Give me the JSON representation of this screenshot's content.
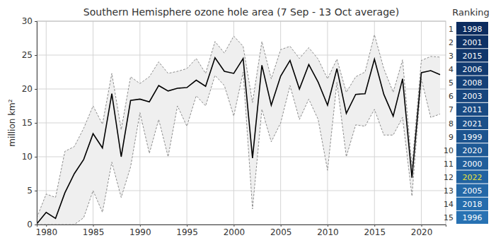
{
  "chart_data": {
    "type": "line",
    "title": "Southern Hemisphere ozone hole area (7 Sep - 13 Oct average)",
    "y_label": "million km²",
    "x": [
      1979,
      1980,
      1981,
      1982,
      1983,
      1984,
      1985,
      1986,
      1987,
      1988,
      1989,
      1990,
      1991,
      1992,
      1993,
      1994,
      1995,
      1996,
      1997,
      1998,
      1999,
      2000,
      2001,
      2002,
      2003,
      2004,
      2005,
      2006,
      2007,
      2008,
      2009,
      2010,
      2011,
      2012,
      2013,
      2014,
      2015,
      2016,
      2017,
      2018,
      2019,
      2020,
      2021,
      2022
    ],
    "series": [
      {
        "type": "line",
        "color": "#000000",
        "line_style": "solid",
        "values": [
          0.1,
          1.8,
          0.9,
          4.7,
          7.5,
          9.6,
          13.4,
          11.3,
          19.3,
          10.0,
          18.3,
          18.5,
          18.1,
          20.5,
          19.7,
          20.1,
          20.2,
          21.3,
          20.4,
          24.6,
          22.6,
          22.3,
          24.5,
          9.8,
          23.5,
          17.6,
          21.9,
          24.2,
          20.0,
          23.6,
          21.0,
          17.6,
          23.0,
          16.4,
          19.2,
          19.3,
          24.4,
          19.2,
          16.0,
          21.5,
          6.9,
          22.4,
          22.7,
          22.1
        ]
      },
      {
        "type": "line",
        "color": "#808080",
        "line_style": "dashed",
        "values": [
          1.0,
          4.5,
          4.0,
          10.8,
          11.5,
          14.2,
          17.5,
          14.8,
          22.3,
          14.0,
          21.8,
          20.8,
          21.8,
          24.0,
          22.3,
          22.6,
          23.0,
          24.5,
          22.3,
          27.0,
          25.3,
          27.8,
          26.3,
          18.0,
          27.0,
          21.5,
          25.8,
          26.3,
          24.5,
          26.1,
          24.4,
          21.5,
          24.4,
          19.5,
          21.8,
          22.5,
          28.0,
          23.0,
          19.5,
          24.3,
          8.5,
          24.2,
          24.8,
          24.7
        ]
      },
      {
        "type": "line",
        "color": "#808080",
        "line_style": "dashed",
        "values": [
          0.0,
          0.0,
          0.0,
          0.0,
          0.0,
          1.0,
          5.0,
          1.8,
          9.2,
          4.0,
          8.5,
          16.5,
          10.5,
          15.5,
          10.0,
          17.5,
          14.5,
          19.0,
          17.5,
          22.0,
          20.5,
          16.0,
          22.5,
          2.3,
          17.0,
          12.2,
          15.0,
          20.5,
          15.5,
          18.5,
          15.5,
          8.0,
          21.0,
          10.0,
          14.7,
          14.5,
          17.0,
          13.2,
          13.2,
          15.8,
          4.2,
          21.5,
          15.8,
          16.3
        ]
      }
    ],
    "xlim": [
      1979,
      2022.6
    ],
    "xticks": [
      1980,
      1985,
      1990,
      1995,
      2000,
      2005,
      2010,
      2015,
      2020
    ],
    "ylim": [
      0,
      30
    ],
    "yticks": [
      0,
      5,
      10,
      15,
      20,
      25,
      30
    ],
    "grid": true
  },
  "ranking": {
    "title": "Ranking",
    "ranks": [
      1,
      2,
      3,
      4,
      5,
      6,
      7,
      8,
      9,
      10,
      11,
      12,
      13,
      14,
      15
    ],
    "years": [
      "1998",
      "2001",
      "2015",
      "2006",
      "2008",
      "2003",
      "2011",
      "2021",
      "1999",
      "2020",
      "2000",
      "2022",
      "2005",
      "2018",
      "1996"
    ],
    "colors": [
      "#0c2c5f",
      "#0e3165",
      "#10366b",
      "#123b71",
      "#144077",
      "#16457d",
      "#184a83",
      "#1a4f89",
      "#1c548f",
      "#1e5995",
      "#205e9b",
      "#2263a1",
      "#2468a7",
      "#266dad",
      "#2872b3"
    ],
    "text_colors": [
      "#ffffff",
      "#ffffff",
      "#ffffff",
      "#ffffff",
      "#ffffff",
      "#ffffff",
      "#ffffff",
      "#ffffff",
      "#ffffff",
      "#ffffff",
      "#ffffff",
      "#e8e33a",
      "#ffffff",
      "#ffffff",
      "#ffffff"
    ]
  }
}
